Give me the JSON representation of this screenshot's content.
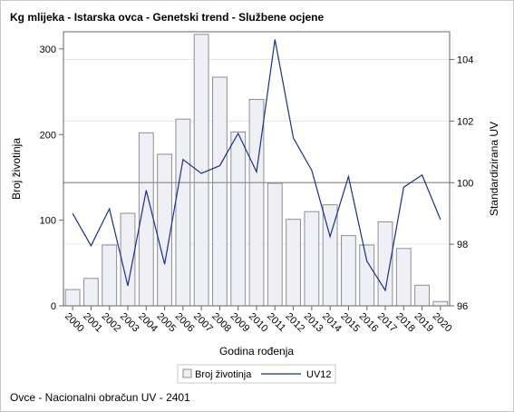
{
  "chart_data": {
    "type": "bar",
    "title": "Kg mlijeka - Istarska ovca - Genetski trend - Službene ocjene",
    "xlabel": "Godina rođenja",
    "ylabel": "Broj životinja",
    "y2label": "Standardizirana UV",
    "categories": [
      "2000",
      "2001",
      "2002",
      "2003",
      "2004",
      "2005",
      "2006",
      "2007",
      "2008",
      "2009",
      "2010",
      "2011",
      "2012",
      "2013",
      "2014",
      "2015",
      "2016",
      "2017",
      "2018",
      "2019",
      "2020"
    ],
    "series": [
      {
        "name": "Broj životinja",
        "type": "bar",
        "axis": "left",
        "values": [
          19,
          32,
          71,
          108,
          202,
          177,
          218,
          317,
          267,
          203,
          241,
          143,
          101,
          110,
          118,
          82,
          71,
          98,
          67,
          24,
          5
        ]
      },
      {
        "name": "UV12",
        "type": "line",
        "axis": "right",
        "values": [
          99.0,
          97.95,
          99.15,
          96.65,
          99.75,
          97.35,
          100.75,
          100.3,
          100.55,
          101.6,
          100.35,
          104.65,
          101.45,
          100.4,
          98.25,
          100.2,
          97.45,
          96.5,
          99.85,
          100.25,
          98.8
        ]
      }
    ],
    "ylim": [
      0,
      320
    ],
    "y_ticks": [
      0,
      100,
      200,
      300
    ],
    "y2lim": [
      96,
      104.9
    ],
    "y2_ticks": [
      96,
      98,
      100,
      102,
      104
    ],
    "reference_line_y2": 100,
    "colors": {
      "bar_fill": "#eef0f5",
      "bar_stroke": "#8c8f98",
      "line": "#1a2f8c",
      "ref_line": "#909090",
      "grid": "#e6e6e6"
    }
  },
  "legend": {
    "items": [
      "Broj životinja",
      "UV12"
    ]
  },
  "footnote": "Ovce - Nacionalni obračun UV - 2401"
}
